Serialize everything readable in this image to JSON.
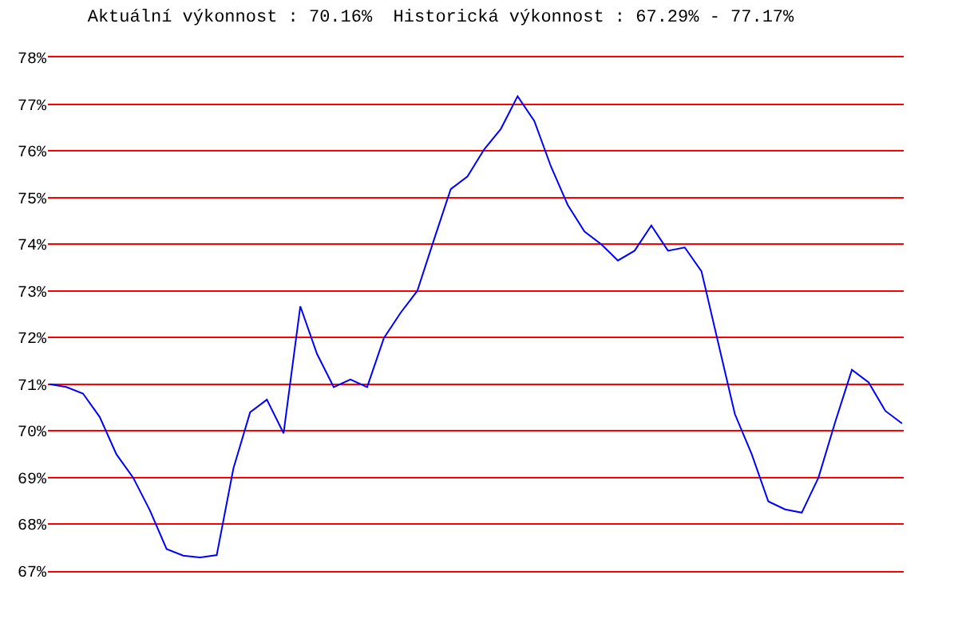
{
  "chart_data": {
    "type": "line",
    "title": "Aktuální výkonnost : 70.16%  Historická výkonnost : 67.29% - 77.17%",
    "categories": [
      null,
      null,
      null,
      null,
      null,
      null,
      null,
      null,
      null,
      null,
      null,
      null,
      null,
      null,
      null,
      null,
      null,
      null,
      null,
      null,
      null,
      null,
      null,
      null,
      null,
      null,
      null,
      null,
      null,
      null,
      null,
      null,
      null,
      null,
      null,
      null,
      null,
      null,
      null,
      null,
      null,
      null,
      null,
      null,
      null,
      null,
      null,
      null,
      null,
      null,
      null,
      null
    ],
    "series": [
      {
        "color": "#0000ff",
        "values": [
          71.0,
          70.94,
          70.8,
          70.3,
          69.5,
          69.0,
          68.3,
          67.47,
          67.33,
          67.29,
          67.34,
          69.2,
          70.4,
          70.67,
          69.95,
          72.67,
          71.65,
          70.94,
          71.1,
          70.94,
          71.99,
          72.53,
          73.0,
          74.1,
          75.18,
          75.45,
          76.03,
          76.47,
          77.17,
          76.64,
          75.66,
          74.84,
          74.27,
          74.0,
          73.65,
          73.86,
          74.4,
          73.86,
          73.93,
          73.42,
          71.89,
          70.36,
          69.51,
          68.49,
          68.32,
          68.25,
          69.0,
          70.19,
          71.31,
          71.04,
          70.43,
          70.16
        ]
      }
    ],
    "ylim": [
      67,
      78
    ],
    "yticks": [
      {
        "value": 67,
        "label": "67%"
      },
      {
        "value": 68,
        "label": "68%"
      },
      {
        "value": 69,
        "label": "69%"
      },
      {
        "value": 70,
        "label": "70%"
      },
      {
        "value": 71,
        "label": "71%"
      },
      {
        "value": 72,
        "label": "72%"
      },
      {
        "value": 73,
        "label": "73%"
      },
      {
        "value": 74,
        "label": "74%"
      },
      {
        "value": 75,
        "label": "75%"
      },
      {
        "value": 76,
        "label": "76%"
      },
      {
        "value": 77,
        "label": "77%"
      },
      {
        "value": 78,
        "label": "78%"
      }
    ],
    "grid": "y",
    "tick_labels": "y",
    "marker": "none",
    "line_style": "solid"
  }
}
